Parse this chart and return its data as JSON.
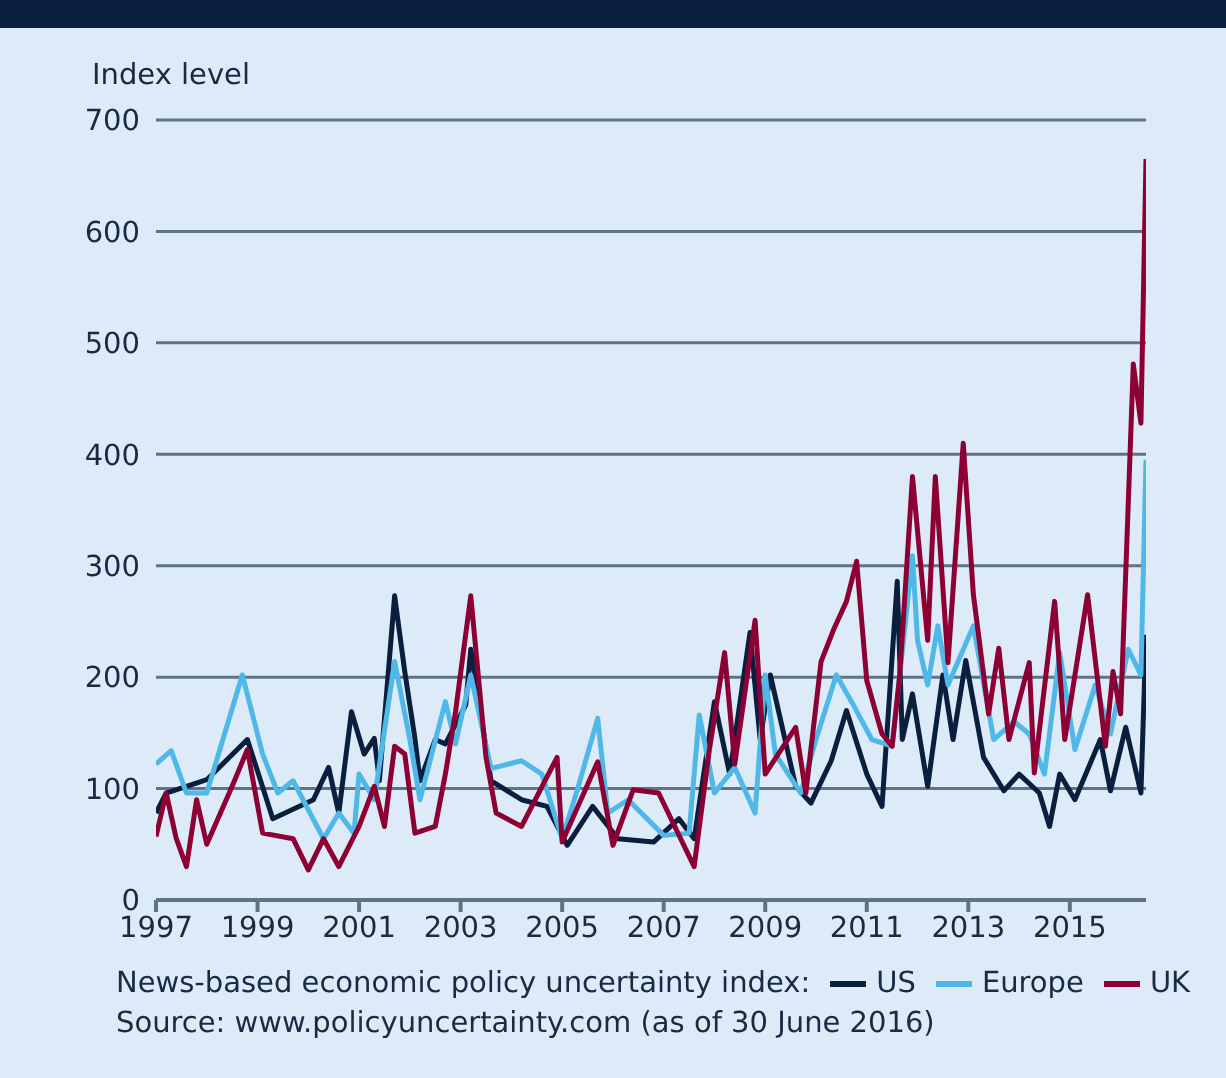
{
  "chart_data": {
    "type": "line",
    "ylabel": "Index level",
    "legend_title": "News-based economic policy uncertainty index:",
    "annotations": [
      "Source: www.policyuncertainty.com (as of 30 June 2016)"
    ],
    "xlim": [
      1997,
      2016.5
    ],
    "xticks": [
      1997,
      1999,
      2001,
      2003,
      2005,
      2007,
      2009,
      2011,
      2013,
      2015
    ],
    "ylim": [
      0,
      700
    ],
    "yticks": [
      0,
      100,
      200,
      300,
      400,
      500,
      600,
      700
    ],
    "grid": "y",
    "legend": "bottom",
    "marker": "none",
    "line_style": "solid",
    "series": [
      {
        "name": "US",
        "color": "#0a1f3d",
        "x": [
          1997.0,
          1997.2,
          1998.0,
          1998.8,
          1999.3,
          2000.1,
          2000.4,
          2000.6,
          2000.85,
          2001.1,
          2001.3,
          2001.4,
          2001.7,
          2001.9,
          2002.1,
          2002.2,
          2002.5,
          2002.7,
          2003.1,
          2003.2,
          2003.6,
          2004.2,
          2004.7,
          2005.1,
          2005.6,
          2006.1,
          2006.8,
          2007.3,
          2007.6,
          2008.0,
          2008.3,
          2008.7,
          2008.9,
          2009.1,
          2009.6,
          2009.9,
          2010.3,
          2010.6,
          2011.0,
          2011.3,
          2011.6,
          2011.7,
          2011.9,
          2012.2,
          2012.5,
          2012.7,
          2012.95,
          2013.3,
          2013.7,
          2014.0,
          2014.4,
          2014.6,
          2014.8,
          2015.1,
          2015.6,
          2015.8,
          2016.1,
          2016.4,
          2016.5
        ],
        "values": [
          78,
          96,
          108,
          144,
          73,
          90,
          119,
          78,
          169,
          131,
          145,
          107,
          273,
          205,
          145,
          107,
          144,
          140,
          175,
          225,
          107,
          90,
          84,
          49,
          84,
          55,
          52,
          73,
          55,
          178,
          113,
          240,
          144,
          202,
          102,
          87,
          125,
          170,
          113,
          84,
          286,
          144,
          185,
          102,
          202,
          144,
          215,
          128,
          98,
          113,
          96,
          66,
          113,
          90,
          144,
          98,
          155,
          96,
          238
        ]
      },
      {
        "name": "Europe",
        "color": "#4fb8e8",
        "x": [
          1997.0,
          1997.3,
          1997.6,
          1998.0,
          1998.7,
          1999.1,
          1999.4,
          1999.7,
          2000.3,
          2000.6,
          2000.9,
          2001.0,
          2001.3,
          2001.7,
          2002.0,
          2002.2,
          2002.7,
          2002.9,
          2003.2,
          2003.6,
          2004.2,
          2004.6,
          2005.0,
          2005.3,
          2005.7,
          2005.9,
          2006.3,
          2007.0,
          2007.5,
          2007.7,
          2008.0,
          2008.4,
          2008.8,
          2009.0,
          2009.2,
          2009.7,
          2010.0,
          2010.4,
          2010.7,
          2011.1,
          2011.5,
          2011.9,
          2012.0,
          2012.2,
          2012.4,
          2012.6,
          2013.1,
          2013.5,
          2013.9,
          2014.2,
          2014.5,
          2014.8,
          2015.1,
          2015.5,
          2015.8,
          2016.15,
          2016.4,
          2016.5
        ],
        "values": [
          122,
          134,
          96,
          96,
          202,
          131,
          96,
          107,
          55,
          78,
          60,
          113,
          90,
          214,
          144,
          90,
          178,
          140,
          202,
          118,
          125,
          113,
          55,
          99,
          163,
          78,
          90,
          58,
          60,
          166,
          96,
          119,
          78,
          202,
          131,
          96,
          144,
          202,
          178,
          144,
          138,
          309,
          233,
          193,
          246,
          193,
          246,
          144,
          160,
          149,
          113,
          222,
          135,
          193,
          149,
          225,
          202,
          395
        ]
      },
      {
        "name": "UK",
        "color": "#8c0034",
        "x": [
          1997.0,
          1997.2,
          1997.4,
          1997.6,
          1997.8,
          1998.0,
          1998.5,
          1998.8,
          1999.1,
          1999.7,
          2000.0,
          2000.3,
          2000.6,
          2001.0,
          2001.3,
          2001.5,
          2001.7,
          2001.9,
          2002.1,
          2002.5,
          2002.7,
          2002.9,
          2003.2,
          2003.5,
          2003.7,
          2004.2,
          2004.9,
          2005.0,
          2005.7,
          2006.0,
          2006.4,
          2006.9,
          2007.6,
          2007.9,
          2008.2,
          2008.4,
          2008.8,
          2009.0,
          2009.6,
          2009.8,
          2010.1,
          2010.35,
          2010.6,
          2010.8,
          2011.0,
          2011.3,
          2011.5,
          2011.65,
          2011.9,
          2012.2,
          2012.35,
          2012.6,
          2012.9,
          2013.1,
          2013.4,
          2013.6,
          2013.8,
          2014.2,
          2014.3,
          2014.7,
          2014.9,
          2015.35,
          2015.7,
          2015.85,
          2016.0,
          2016.25,
          2016.4,
          2016.5
        ],
        "values": [
          57,
          96,
          55,
          30,
          90,
          50,
          102,
          135,
          60,
          55,
          27,
          55,
          30,
          66,
          102,
          66,
          138,
          131,
          60,
          66,
          113,
          169,
          273,
          128,
          78,
          66,
          128,
          52,
          124,
          49,
          99,
          96,
          30,
          135,
          222,
          122,
          251,
          113,
          155,
          96,
          214,
          243,
          268,
          304,
          197,
          149,
          138,
          202,
          380,
          233,
          380,
          213,
          410,
          274,
          167,
          226,
          144,
          213,
          114,
          268,
          144,
          274,
          138,
          205,
          167,
          481,
          428,
          665
        ]
      }
    ]
  }
}
